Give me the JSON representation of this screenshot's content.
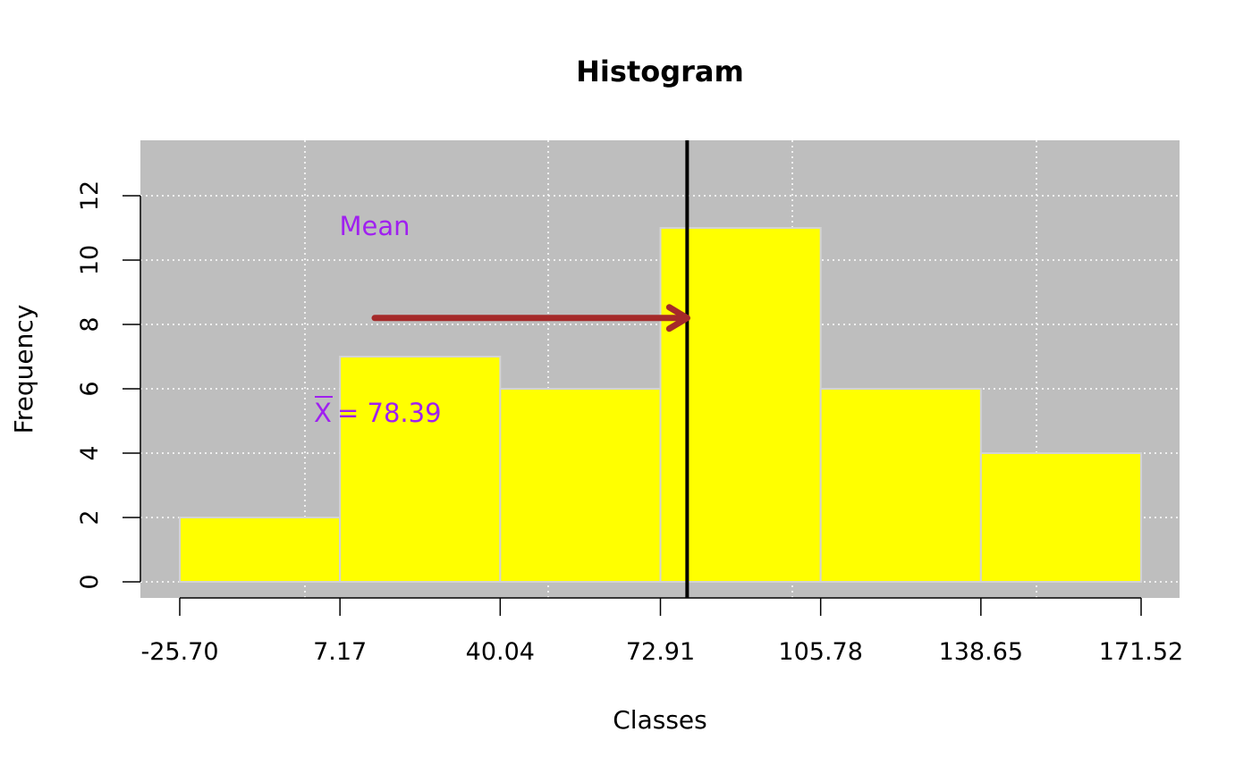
{
  "chart_data": {
    "type": "bar",
    "title": "Histogram",
    "xlabel": "Classes",
    "ylabel": "Frequency",
    "class_breaks": [
      -25.7,
      7.17,
      40.04,
      72.91,
      105.78,
      138.65,
      171.52
    ],
    "x_tick_labels": [
      "-25.70",
      "7.17",
      "40.04",
      "72.91",
      "105.78",
      "138.65",
      "171.52"
    ],
    "values": [
      2,
      7,
      6,
      11,
      6,
      4
    ],
    "y_ticks": [
      0,
      2,
      4,
      6,
      8,
      10,
      12
    ],
    "y_tick_labels": [
      "0",
      "2",
      "4",
      "6",
      "8",
      "10",
      "12"
    ],
    "ylim": [
      0,
      13.2
    ],
    "grid": true,
    "background": "gray",
    "colors": {
      "bar_fill": "#ffff00",
      "bar_border": "#d3d3d3",
      "panel": "#bebebe",
      "grid": "#ffffff",
      "mean_line": "#000000",
      "arrow": "#a52a2a",
      "annotation": "#a020f0"
    },
    "mean": {
      "value": 78.39,
      "label": "Mean",
      "symbol": "X",
      "value_text": "= 78.39"
    }
  }
}
